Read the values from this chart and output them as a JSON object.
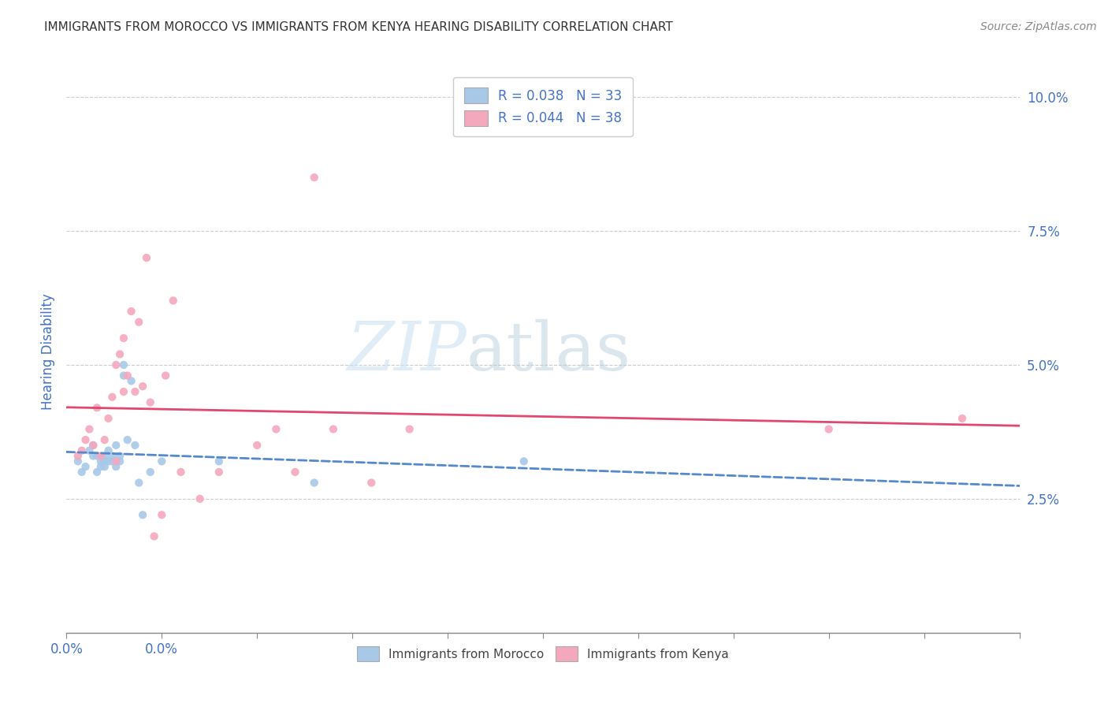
{
  "title": "IMMIGRANTS FROM MOROCCO VS IMMIGRANTS FROM KENYA HEARING DISABILITY CORRELATION CHART",
  "source": "Source: ZipAtlas.com",
  "ylabel": "Hearing Disability",
  "xlim": [
    0.0,
    0.25
  ],
  "ylim": [
    0.0,
    0.105
  ],
  "xticks": [
    0.0,
    0.025,
    0.05,
    0.075,
    0.1,
    0.125,
    0.15,
    0.175,
    0.2,
    0.225,
    0.25
  ],
  "xticklabels_shown": {
    "0.0": "0.0%"
  },
  "yticks": [
    0.0,
    0.025,
    0.05,
    0.075,
    0.1
  ],
  "yticklabels": [
    "",
    "2.5%",
    "5.0%",
    "7.5%",
    "10.0%"
  ],
  "r_morocco": 0.038,
  "n_morocco": 33,
  "r_kenya": 0.044,
  "n_kenya": 38,
  "color_morocco": "#a8c8e8",
  "color_kenya": "#f4a8be",
  "line_color_morocco": "#5588cc",
  "line_color_kenya": "#e04870",
  "watermark_zip": "ZIP",
  "watermark_atlas": "atlas",
  "tick_color": "#4472c4",
  "grid_color": "#cccccc",
  "background_color": "#ffffff",
  "morocco_x": [
    0.003,
    0.004,
    0.005,
    0.006,
    0.007,
    0.007,
    0.008,
    0.008,
    0.009,
    0.009,
    0.01,
    0.01,
    0.01,
    0.011,
    0.011,
    0.012,
    0.012,
    0.013,
    0.013,
    0.014,
    0.014,
    0.015,
    0.015,
    0.016,
    0.017,
    0.018,
    0.019,
    0.02,
    0.022,
    0.025,
    0.04,
    0.065,
    0.12
  ],
  "morocco_y": [
    0.032,
    0.03,
    0.031,
    0.034,
    0.035,
    0.033,
    0.03,
    0.033,
    0.031,
    0.032,
    0.033,
    0.032,
    0.031,
    0.034,
    0.032,
    0.033,
    0.032,
    0.031,
    0.035,
    0.032,
    0.033,
    0.05,
    0.048,
    0.036,
    0.047,
    0.035,
    0.028,
    0.022,
    0.03,
    0.032,
    0.032,
    0.028,
    0.032
  ],
  "kenya_x": [
    0.003,
    0.004,
    0.005,
    0.006,
    0.007,
    0.008,
    0.009,
    0.01,
    0.011,
    0.012,
    0.013,
    0.013,
    0.014,
    0.015,
    0.015,
    0.016,
    0.017,
    0.018,
    0.019,
    0.02,
    0.021,
    0.022,
    0.023,
    0.025,
    0.026,
    0.028,
    0.03,
    0.035,
    0.04,
    0.05,
    0.055,
    0.06,
    0.065,
    0.07,
    0.08,
    0.09,
    0.2,
    0.235
  ],
  "kenya_y": [
    0.033,
    0.034,
    0.036,
    0.038,
    0.035,
    0.042,
    0.033,
    0.036,
    0.04,
    0.044,
    0.032,
    0.05,
    0.052,
    0.045,
    0.055,
    0.048,
    0.06,
    0.045,
    0.058,
    0.046,
    0.07,
    0.043,
    0.018,
    0.022,
    0.048,
    0.062,
    0.03,
    0.025,
    0.03,
    0.035,
    0.038,
    0.03,
    0.085,
    0.038,
    0.028,
    0.038,
    0.038,
    0.04
  ]
}
